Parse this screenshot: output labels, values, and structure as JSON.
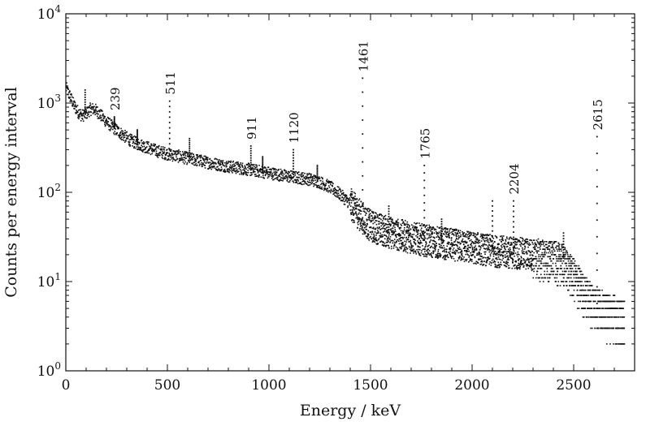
{
  "chart_data": {
    "type": "scatter",
    "title": "",
    "xlabel": "Energy / keV",
    "ylabel": "Counts per energy interval",
    "xlim": [
      0,
      2800
    ],
    "ylim": [
      1,
      10000
    ],
    "yscale": "log",
    "grid": false,
    "legend": "none",
    "x_ticks": [
      {
        "value": 0,
        "label": "0"
      },
      {
        "value": 500,
        "label": "500"
      },
      {
        "value": 1000,
        "label": "1000"
      },
      {
        "value": 1500,
        "label": "1500"
      },
      {
        "value": 2000,
        "label": "2000"
      },
      {
        "value": 2500,
        "label": "2500"
      }
    ],
    "y_ticks": [
      {
        "value": 1,
        "base": "10",
        "exp": "0"
      },
      {
        "value": 10,
        "base": "10",
        "exp": "1"
      },
      {
        "value": 100,
        "base": "10",
        "exp": "2"
      },
      {
        "value": 1000,
        "base": "10",
        "exp": "3"
      },
      {
        "value": 10000,
        "base": "10",
        "exp": "4"
      }
    ],
    "continuum": [
      [
        0,
        1500
      ],
      [
        20,
        1200
      ],
      [
        40,
        950
      ],
      [
        60,
        800
      ],
      [
        80,
        720
      ],
      [
        100,
        760
      ],
      [
        120,
        850
      ],
      [
        140,
        860
      ],
      [
        160,
        780
      ],
      [
        200,
        620
      ],
      [
        239,
        520
      ],
      [
        280,
        440
      ],
      [
        320,
        380
      ],
      [
        360,
        345
      ],
      [
        400,
        320
      ],
      [
        450,
        290
      ],
      [
        511,
        265
      ],
      [
        550,
        255
      ],
      [
        600,
        240
      ],
      [
        650,
        228
      ],
      [
        700,
        215
      ],
      [
        800,
        195
      ],
      [
        900,
        180
      ],
      [
        1000,
        165
      ],
      [
        1100,
        150
      ],
      [
        1200,
        140
      ],
      [
        1250,
        130
      ],
      [
        1300,
        115
      ],
      [
        1350,
        95
      ],
      [
        1400,
        75
      ],
      [
        1450,
        55
      ],
      [
        1500,
        42
      ],
      [
        1600,
        35
      ],
      [
        1700,
        31
      ],
      [
        1800,
        28
      ],
      [
        1900,
        26
      ],
      [
        2000,
        24
      ],
      [
        2100,
        22
      ],
      [
        2200,
        21
      ],
      [
        2300,
        20
      ],
      [
        2400,
        19
      ],
      [
        2450,
        17
      ],
      [
        2500,
        12
      ],
      [
        2550,
        8
      ],
      [
        2600,
        6
      ],
      [
        2650,
        5
      ],
      [
        2700,
        4.5
      ],
      [
        2750,
        4
      ]
    ],
    "peaks": [
      {
        "energy": 239,
        "counts": 700,
        "label": "239"
      },
      {
        "energy": 511,
        "counts": 1050,
        "label": "511"
      },
      {
        "energy": 911,
        "counts": 330,
        "label": "911"
      },
      {
        "energy": 1120,
        "counts": 300,
        "label": "1120"
      },
      {
        "energy": 1461,
        "counts": 1900,
        "label": "1461"
      },
      {
        "energy": 1765,
        "counts": 200,
        "label": "1765"
      },
      {
        "energy": 2204,
        "counts": 80,
        "label": "2204"
      },
      {
        "energy": 2615,
        "counts": 420,
        "label": "2615"
      }
    ],
    "minor_peaks": [
      {
        "energy": 95,
        "counts": 1400
      },
      {
        "energy": 352,
        "counts": 500
      },
      {
        "energy": 609,
        "counts": 400
      },
      {
        "energy": 969,
        "counts": 250
      },
      {
        "energy": 1238,
        "counts": 200
      },
      {
        "energy": 1590,
        "counts": 70
      },
      {
        "energy": 1850,
        "counts": 50
      },
      {
        "energy": 2100,
        "counts": 80
      },
      {
        "energy": 2450,
        "counts": 35
      }
    ]
  }
}
